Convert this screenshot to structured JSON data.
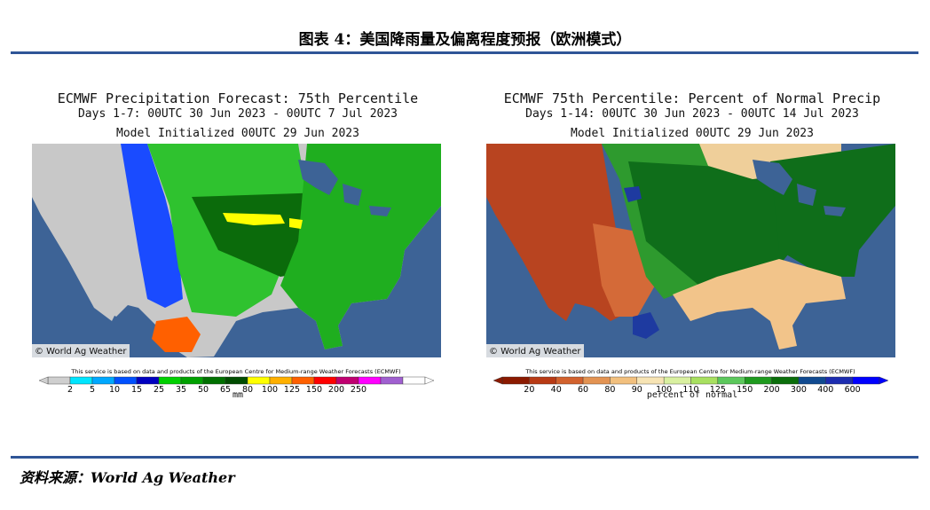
{
  "figure_title": "图表 4：美国降雨量及偏离程度预报（欧洲模式）",
  "source": "资料来源：World Ag Weather",
  "chart_data": [
    {
      "type": "heatmap",
      "title": "ECMWF Precipitation Forecast: 75th Percentile",
      "subtitle": "Days 1-7: 00UTC 30 Jun 2023 - 00UTC 7 Jul 2023",
      "init": "Model Initialized 00UTC 29 Jun 2023",
      "watermark": "© World Ag Weather",
      "disclaimer": "This service is based on data and products of the European Centre for Medium-range Weather Forecasts (ECMWF)",
      "colorbar_unit": "mm",
      "colorbar_ticks": [
        "2",
        "5",
        "10",
        "15",
        "25",
        "35",
        "50",
        "65",
        "80",
        "100",
        "125",
        "150",
        "200",
        "250"
      ],
      "colorbar_colors": [
        "#cfcfcf",
        "#00e5ff",
        "#00a8ff",
        "#0050ff",
        "#0000c0",
        "#00d000",
        "#00a000",
        "#007000",
        "#004c00",
        "#ffff00",
        "#ffb000",
        "#ff6000",
        "#ff0000",
        "#c00070",
        "#ff00ff",
        "#a060d0",
        "#ffffff"
      ],
      "regions": [
        {
          "name": "west-dry",
          "color": "#c8c8c8"
        },
        {
          "name": "west-rim",
          "color": "#1a4bff"
        },
        {
          "name": "plains",
          "color": "#2fc22f"
        },
        {
          "name": "central-dark",
          "color": "#0b6b0b"
        },
        {
          "name": "east",
          "color": "#1fae1f"
        },
        {
          "name": "yellow-band",
          "color": "#ffff00"
        },
        {
          "name": "mexico-hotspot",
          "color": "#ff6000"
        }
      ]
    },
    {
      "type": "heatmap",
      "title": "ECMWF 75th Percentile: Percent of Normal Precip",
      "subtitle": "Days 1-14: 00UTC 30 Jun 2023 - 00UTC 14 Jul 2023",
      "init": "Model Initialized 00UTC 29 Jun 2023",
      "watermark": "© World Ag Weather",
      "disclaimer": "This service is based on data and products of the European Centre for Medium-range Weather Forecasts (ECMWF)",
      "colorbar_unit": "percent of normal",
      "colorbar_ticks": [
        "20",
        "40",
        "60",
        "80",
        "90",
        "100",
        "110",
        "125",
        "150",
        "200",
        "300",
        "400",
        "600"
      ],
      "colorbar_colors": [
        "#8b1a00",
        "#b83a14",
        "#d2622e",
        "#e39352",
        "#f2c07e",
        "#f7e4b4",
        "#d9f0a0",
        "#a8e060",
        "#5cc85c",
        "#1e9a1e",
        "#0a6e0a",
        "#104a90",
        "#1c2cb0",
        "#0000ff"
      ],
      "regions": [
        {
          "name": "west-dry",
          "color": "#b84420"
        },
        {
          "name": "southwest",
          "color": "#d46a38"
        },
        {
          "name": "plains",
          "color": "#2e9a2e"
        },
        {
          "name": "central",
          "color": "#0f6e1a"
        },
        {
          "name": "southeast",
          "color": "#f2c48a"
        },
        {
          "name": "north-tan",
          "color": "#efcf9a"
        },
        {
          "name": "blue-spot",
          "color": "#1e3aa0"
        }
      ]
    }
  ]
}
